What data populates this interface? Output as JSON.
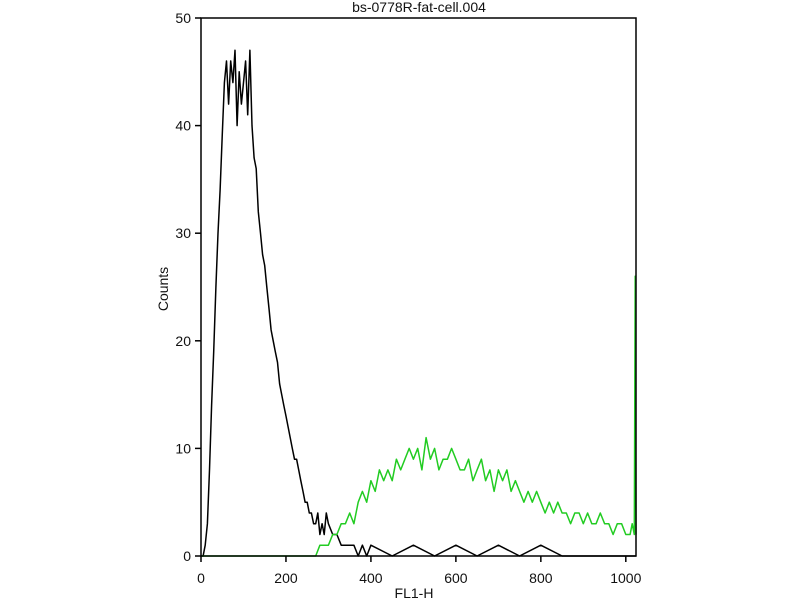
{
  "chart_data": {
    "type": "line",
    "title": "bs-0778R-fat-cell.004",
    "xlabel": "FL1-H",
    "ylabel": "Counts",
    "xlim": [
      0,
      1024
    ],
    "ylim": [
      0,
      50
    ],
    "xticks": [
      0,
      200,
      400,
      600,
      800,
      1000
    ],
    "yticks": [
      0,
      10,
      20,
      30,
      40,
      50
    ],
    "series": [
      {
        "color": "#000000",
        "x": [
          0,
          5,
          10,
          15,
          20,
          25,
          30,
          35,
          40,
          45,
          50,
          55,
          60,
          65,
          70,
          75,
          80,
          85,
          90,
          95,
          100,
          105,
          110,
          115,
          120,
          125,
          130,
          135,
          140,
          145,
          150,
          155,
          160,
          165,
          170,
          175,
          180,
          185,
          190,
          195,
          200,
          205,
          210,
          215,
          220,
          225,
          230,
          235,
          240,
          245,
          250,
          255,
          260,
          265,
          270,
          275,
          280,
          285,
          290,
          295,
          300,
          310,
          320,
          330,
          340,
          350,
          360,
          370,
          380,
          390,
          400,
          450,
          500,
          550,
          600,
          650,
          700,
          750,
          800,
          850,
          900,
          950,
          1000,
          1024
        ],
        "values": [
          0,
          0,
          1,
          3,
          8,
          14,
          19,
          25,
          30,
          34,
          39,
          44,
          46,
          42,
          46,
          44,
          47,
          40,
          45,
          42,
          44,
          46,
          41,
          47,
          40,
          37,
          36,
          32,
          30,
          28,
          27,
          25,
          23,
          21,
          20,
          19,
          18,
          16,
          15,
          14,
          13,
          12,
          11,
          10,
          9,
          9,
          8,
          7,
          6,
          5,
          5,
          4,
          4,
          3,
          3,
          4,
          2,
          3,
          2,
          4,
          3,
          2,
          2,
          1,
          1,
          1,
          1,
          0,
          1,
          0,
          1,
          0,
          1,
          0,
          1,
          0,
          1,
          0,
          1,
          0,
          0,
          0,
          0,
          0
        ]
      },
      {
        "color": "#22cc22",
        "x": [
          0,
          100,
          150,
          170,
          180,
          190,
          200,
          210,
          220,
          230,
          240,
          250,
          260,
          270,
          280,
          290,
          300,
          310,
          320,
          330,
          340,
          350,
          360,
          370,
          380,
          390,
          400,
          410,
          420,
          430,
          440,
          450,
          460,
          470,
          480,
          490,
          500,
          510,
          520,
          530,
          540,
          550,
          560,
          570,
          580,
          590,
          600,
          610,
          620,
          630,
          640,
          650,
          660,
          670,
          680,
          690,
          700,
          710,
          720,
          730,
          740,
          750,
          760,
          770,
          780,
          790,
          800,
          810,
          820,
          830,
          840,
          850,
          860,
          870,
          880,
          890,
          900,
          910,
          920,
          930,
          940,
          950,
          960,
          970,
          980,
          990,
          1000,
          1010,
          1015,
          1020,
          1022,
          1024
        ],
        "values": [
          0,
          0,
          0,
          0,
          0,
          0,
          0,
          0,
          0,
          0,
          0,
          0,
          0,
          0,
          1,
          1,
          1,
          2,
          2,
          3,
          3,
          4,
          3,
          5,
          6,
          5,
          7,
          6,
          8,
          7,
          8,
          7,
          9,
          8,
          9,
          10,
          9,
          10,
          8,
          11,
          9,
          10,
          8,
          9,
          9,
          10,
          9,
          8,
          8,
          9,
          7,
          8,
          9,
          7,
          8,
          6,
          8,
          7,
          8,
          6,
          7,
          6,
          5,
          6,
          5,
          6,
          5,
          4,
          5,
          4,
          5,
          4,
          4,
          3,
          4,
          4,
          3,
          4,
          3,
          3,
          4,
          3,
          3,
          2,
          3,
          3,
          2,
          2,
          3,
          2,
          26,
          2
        ]
      }
    ],
    "grid": false,
    "legend": "none"
  }
}
